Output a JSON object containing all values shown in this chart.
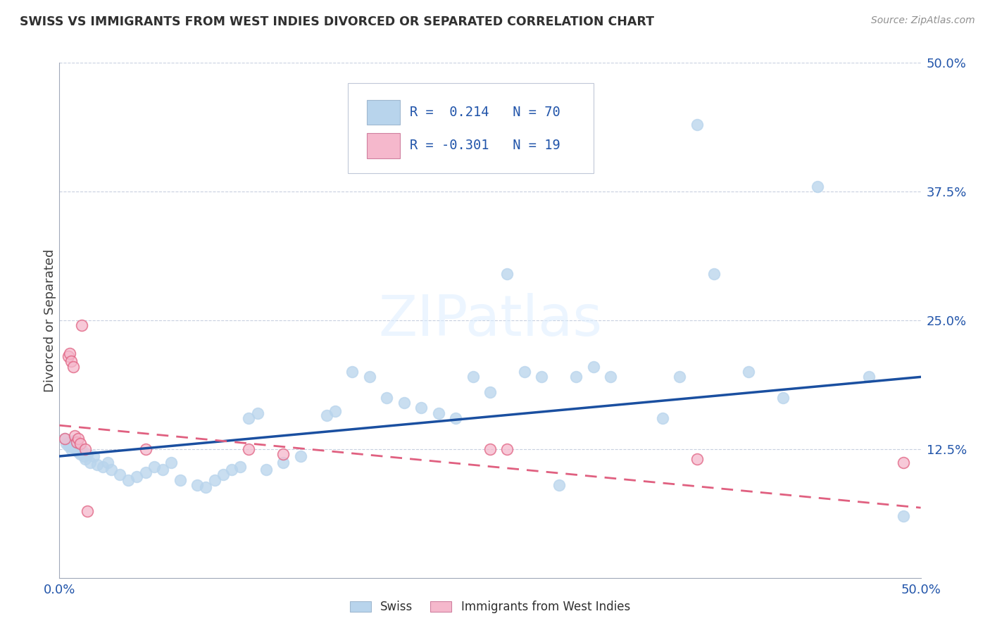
{
  "title": "SWISS VS IMMIGRANTS FROM WEST INDIES DIVORCED OR SEPARATED CORRELATION CHART",
  "source": "Source: ZipAtlas.com",
  "ylabel": "Divorced or Separated",
  "xlim": [
    0.0,
    0.5
  ],
  "ylim": [
    0.0,
    0.5
  ],
  "swiss_color": "#b8d4ec",
  "swiss_edge_color": "#b8d4ec",
  "swiss_line_color": "#1a4fa0",
  "west_indies_color": "#f5b8cc",
  "west_indies_edge_color": "#e06080",
  "west_indies_line_color": "#e06080",
  "legend_swiss_label": "Swiss",
  "legend_wi_label": "Immigrants from West Indies",
  "swiss_R": 0.214,
  "swiss_N": 70,
  "wi_R": -0.301,
  "wi_N": 19,
  "swiss_line_y0": 0.118,
  "swiss_line_y1": 0.195,
  "wi_line_y0": 0.148,
  "wi_line_y1": 0.068,
  "swiss_x": [
    0.003,
    0.004,
    0.005,
    0.006,
    0.006,
    0.007,
    0.007,
    0.008,
    0.008,
    0.009,
    0.01,
    0.01,
    0.011,
    0.012,
    0.013,
    0.014,
    0.015,
    0.016,
    0.018,
    0.02,
    0.022,
    0.025,
    0.028,
    0.03,
    0.035,
    0.04,
    0.045,
    0.05,
    0.055,
    0.06,
    0.065,
    0.07,
    0.08,
    0.085,
    0.09,
    0.095,
    0.1,
    0.105,
    0.11,
    0.115,
    0.12,
    0.13,
    0.14,
    0.155,
    0.16,
    0.17,
    0.18,
    0.19,
    0.2,
    0.21,
    0.22,
    0.23,
    0.24,
    0.25,
    0.26,
    0.27,
    0.28,
    0.29,
    0.3,
    0.31,
    0.32,
    0.35,
    0.36,
    0.37,
    0.38,
    0.4,
    0.42,
    0.44,
    0.47,
    0.49
  ],
  "swiss_y": [
    0.135,
    0.13,
    0.128,
    0.132,
    0.128,
    0.125,
    0.13,
    0.127,
    0.133,
    0.13,
    0.128,
    0.125,
    0.122,
    0.12,
    0.125,
    0.118,
    0.115,
    0.12,
    0.112,
    0.118,
    0.11,
    0.108,
    0.112,
    0.105,
    0.1,
    0.095,
    0.098,
    0.102,
    0.108,
    0.105,
    0.112,
    0.095,
    0.09,
    0.088,
    0.095,
    0.1,
    0.105,
    0.108,
    0.155,
    0.16,
    0.105,
    0.112,
    0.118,
    0.158,
    0.162,
    0.2,
    0.195,
    0.175,
    0.17,
    0.165,
    0.16,
    0.155,
    0.195,
    0.18,
    0.295,
    0.2,
    0.195,
    0.09,
    0.195,
    0.205,
    0.195,
    0.155,
    0.195,
    0.44,
    0.295,
    0.2,
    0.175,
    0.38,
    0.195,
    0.06
  ],
  "wi_x": [
    0.003,
    0.005,
    0.006,
    0.007,
    0.008,
    0.009,
    0.01,
    0.011,
    0.012,
    0.013,
    0.015,
    0.016,
    0.05,
    0.11,
    0.13,
    0.25,
    0.26,
    0.37,
    0.49
  ],
  "wi_y": [
    0.135,
    0.215,
    0.218,
    0.21,
    0.205,
    0.138,
    0.132,
    0.135,
    0.13,
    0.245,
    0.125,
    0.065,
    0.125,
    0.125,
    0.12,
    0.125,
    0.125,
    0.115,
    0.112
  ]
}
